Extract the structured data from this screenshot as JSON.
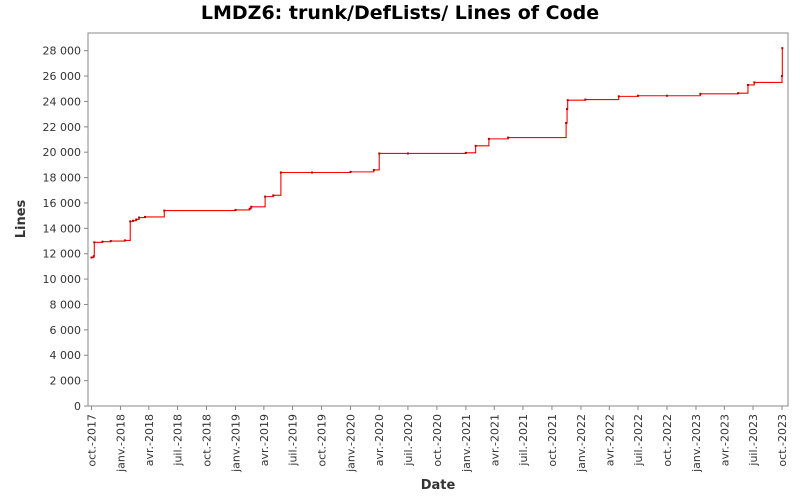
{
  "chart_data": {
    "type": "line",
    "title": "LMDZ6: trunk/DefLists/ Lines of Code",
    "xlabel": "Date",
    "ylabel": "Lines",
    "ylim": [
      0,
      29000
    ],
    "xlim": [
      "2017-09-20",
      "2023-10-20"
    ],
    "grid": false,
    "legend": "none",
    "line_color": "#ff0000",
    "y_ticks": [
      0,
      2000,
      4000,
      6000,
      8000,
      10000,
      12000,
      14000,
      16000,
      18000,
      20000,
      22000,
      24000,
      26000,
      28000
    ],
    "y_tick_labels": [
      "0",
      "2 000",
      "4 000",
      "6 000",
      "8 000",
      "10 000",
      "12 000",
      "14 000",
      "16 000",
      "18 000",
      "20 000",
      "22 000",
      "24 000",
      "26 000",
      "28 000"
    ],
    "x_ticks": [
      "2017-10-01",
      "2018-01-01",
      "2018-04-01",
      "2018-07-01",
      "2018-10-01",
      "2019-01-01",
      "2019-04-01",
      "2019-07-01",
      "2019-10-01",
      "2020-01-01",
      "2020-04-01",
      "2020-07-01",
      "2020-10-01",
      "2021-01-01",
      "2021-04-01",
      "2021-07-01",
      "2021-10-01",
      "2022-01-01",
      "2022-04-01",
      "2022-07-01",
      "2022-10-01",
      "2023-01-01",
      "2023-04-01",
      "2023-07-01",
      "2023-10-01"
    ],
    "x_tick_labels": [
      "oct.-2017",
      "janv.-2018",
      "avr.-2018",
      "juil.-2018",
      "oct.-2018",
      "janv.-2019",
      "avr.-2019",
      "juil.-2019",
      "oct.-2019",
      "janv.-2020",
      "avr.-2020",
      "juil.-2020",
      "oct.-2020",
      "janv.-2021",
      "avr.-2021",
      "juil.-2021",
      "oct.-2021",
      "janv.-2022",
      "avr.-2022",
      "juil.-2022",
      "oct.-2022",
      "janv.-2023",
      "avr.-2023",
      "juil.-2023",
      "oct.-2023"
    ],
    "series": [
      {
        "points": [
          [
            "2017-10-01",
            11700
          ],
          [
            "2017-10-08",
            11800
          ],
          [
            "2017-10-10",
            12900
          ],
          [
            "2017-11-05",
            12950
          ],
          [
            "2017-12-01",
            13000
          ],
          [
            "2018-01-15",
            13050
          ],
          [
            "2018-02-01",
            14550
          ],
          [
            "2018-02-10",
            14600
          ],
          [
            "2018-02-20",
            14700
          ],
          [
            "2018-03-01",
            14850
          ],
          [
            "2018-03-20",
            14900
          ],
          [
            "2018-05-20",
            15400
          ],
          [
            "2019-01-01",
            15450
          ],
          [
            "2019-02-15",
            15550
          ],
          [
            "2019-02-20",
            15700
          ],
          [
            "2019-04-05",
            16500
          ],
          [
            "2019-05-01",
            16600
          ],
          [
            "2019-05-25",
            18400
          ],
          [
            "2019-09-01",
            18400
          ],
          [
            "2020-01-01",
            18450
          ],
          [
            "2020-03-15",
            18600
          ],
          [
            "2020-04-01",
            19900
          ],
          [
            "2020-07-01",
            19900
          ],
          [
            "2021-01-01",
            19950
          ],
          [
            "2021-02-01",
            20500
          ],
          [
            "2021-03-15",
            21050
          ],
          [
            "2021-05-15",
            21150
          ],
          [
            "2021-11-15",
            22300
          ],
          [
            "2021-11-18",
            23400
          ],
          [
            "2021-11-20",
            24100
          ],
          [
            "2022-01-15",
            24150
          ],
          [
            "2022-05-01",
            24400
          ],
          [
            "2022-07-01",
            24450
          ],
          [
            "2022-10-01",
            24450
          ],
          [
            "2023-01-15",
            24600
          ],
          [
            "2023-05-15",
            24650
          ],
          [
            "2023-06-15",
            25300
          ],
          [
            "2023-07-05",
            25500
          ],
          [
            "2023-10-01",
            26000
          ],
          [
            "2023-10-02",
            28200
          ]
        ]
      }
    ]
  }
}
